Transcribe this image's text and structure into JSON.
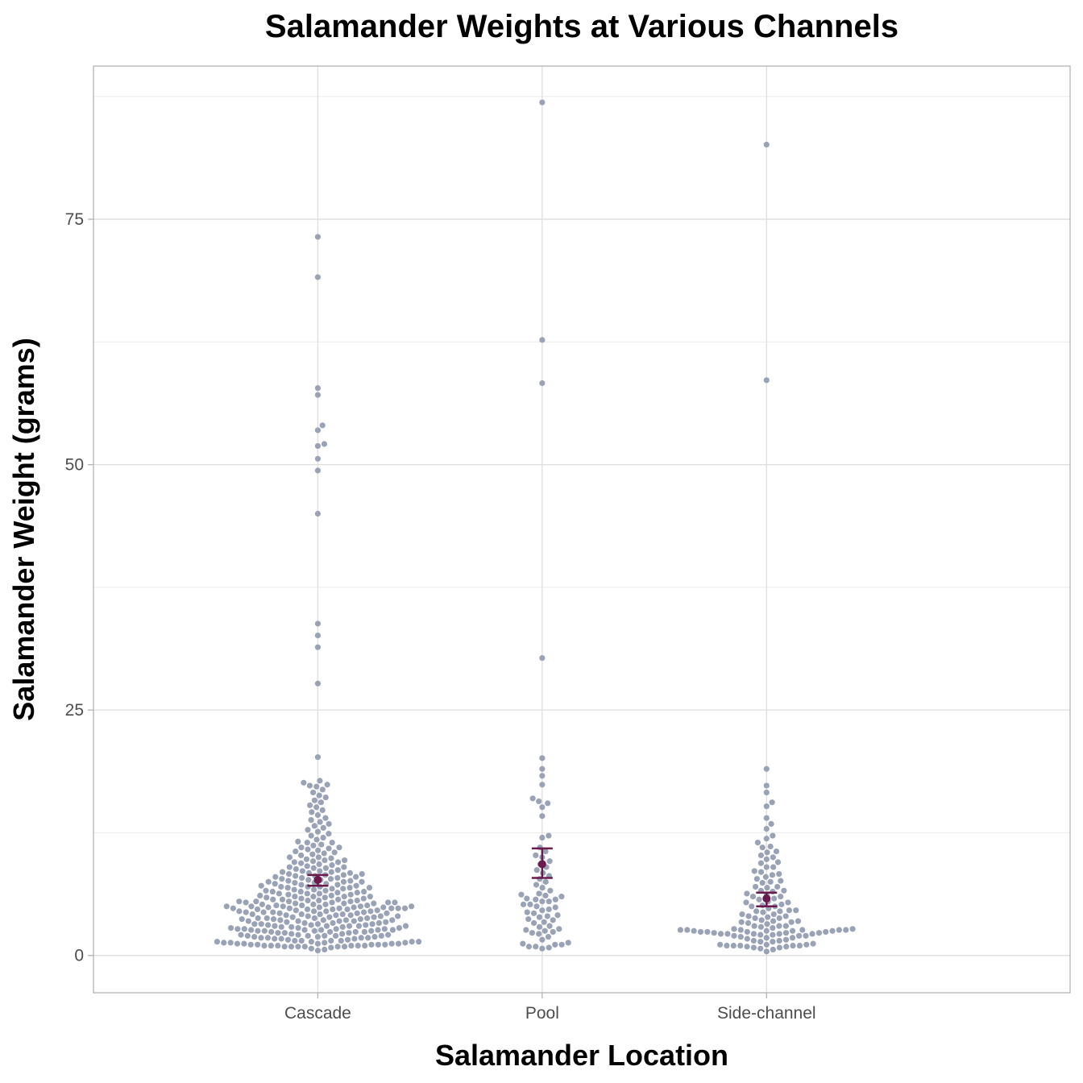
{
  "chart_data": {
    "type": "scatter",
    "subtype": "beeswarm",
    "title": "Salamander Weights at Various Channels",
    "xlabel": "Salamander Location",
    "ylabel": "Salamander Weight (grams)",
    "categories": [
      "Cascade",
      "Pool",
      "Side-channel"
    ],
    "ylim": [
      -3.8,
      90.6
    ],
    "yticks": [
      0,
      25,
      50,
      75
    ],
    "grid": true,
    "legend": "none",
    "point_color": "#9aa3b5",
    "summary_color": "#6b1a4e",
    "series": [
      {
        "name": "Cascade",
        "mean": 7.7,
        "error_low": 7.1,
        "error_high": 8.2,
        "values": [
          73.2,
          69.1,
          57.8,
          57.1,
          54.0,
          53.5,
          52.1,
          51.9,
          50.6,
          49.4,
          45.0,
          33.8,
          32.6,
          31.4,
          27.7,
          20.2,
          17.8,
          17.6,
          17.4,
          17.3,
          17.2,
          16.9,
          16.6,
          16.3,
          16.1,
          15.8,
          15.6,
          15.3,
          15.1,
          14.8,
          14.6,
          14.3,
          14.0,
          13.8,
          13.6,
          13.4,
          13.2,
          13.0,
          12.8,
          12.6,
          12.4,
          12.2,
          12.0,
          11.8,
          11.6,
          11.5,
          11.3,
          11.2,
          11.0,
          10.9,
          10.8,
          10.6,
          10.4,
          10.2,
          10.0,
          9.9,
          9.7,
          9.6,
          9.5,
          9.3,
          9.2,
          9.0,
          8.9,
          8.8,
          8.6,
          8.5,
          8.4,
          8.3,
          8.2,
          8.1,
          8.0,
          7.9,
          7.8,
          7.7,
          7.6,
          7.5,
          7.4,
          7.3,
          7.2,
          7.1,
          7.0,
          6.9,
          6.8,
          6.7,
          6.6,
          6.5,
          6.4,
          6.3,
          6.2,
          6.1,
          6.0,
          5.9,
          5.8,
          5.7,
          5.6,
          5.5,
          5.4,
          5.3,
          5.2,
          5.1,
          5.0,
          4.9,
          4.8,
          4.7,
          4.6,
          4.5,
          4.4,
          4.3,
          4.2,
          4.1,
          4.0,
          3.9,
          3.8,
          3.7,
          3.6,
          3.5,
          3.4,
          3.3,
          3.2,
          3.1,
          3.0,
          2.9,
          2.8,
          2.7,
          2.6,
          2.5,
          2.4,
          2.3,
          2.2,
          2.1,
          2.0,
          1.9,
          1.8,
          1.7,
          1.6,
          1.5,
          1.4,
          1.3,
          1.2,
          1.1,
          1.0,
          0.9,
          0.8,
          0.7,
          0.6,
          0.5,
          11.5,
          11.0,
          10.5,
          10.0,
          9.5,
          9.0,
          8.5,
          8.0,
          7.5,
          7.0,
          6.5,
          6.0,
          5.5,
          5.0,
          4.5,
          4.0,
          3.5,
          3.0,
          2.5,
          2.0,
          1.5,
          1.0,
          10.7,
          9.8,
          9.1,
          8.4,
          7.8,
          7.2,
          6.6,
          6.0,
          5.4,
          4.8,
          4.2,
          3.6,
          3.0,
          2.4,
          1.8,
          1.2,
          0.9,
          10.3,
          9.7,
          8.7,
          8.1,
          7.4,
          6.9,
          6.3,
          5.7,
          5.1,
          4.6,
          4.0,
          3.4,
          2.8,
          2.2,
          1.6,
          1.1,
          9.4,
          8.6,
          7.9,
          7.3,
          6.8,
          6.2,
          5.6,
          5.0,
          4.4,
          3.8,
          3.2,
          2.6,
          2.0,
          1.4,
          0.9,
          8.9,
          8.2,
          7.6,
          7.0,
          6.4,
          5.8,
          5.2,
          4.7,
          4.1,
          3.5,
          2.9,
          2.3,
          1.7,
          1.2,
          8.3,
          7.7,
          7.1,
          6.5,
          5.9,
          5.3,
          4.8,
          4.2,
          3.6,
          3.0,
          2.4,
          1.8,
          1.3,
          0.9,
          7.5,
          6.9,
          6.3,
          5.7,
          5.1,
          4.5,
          3.9,
          3.3,
          2.7,
          2.1,
          1.5,
          1.0,
          6.7,
          6.1,
          5.5,
          4.9,
          4.3,
          3.7,
          3.1,
          2.5,
          1.9,
          1.3,
          6.0,
          5.4,
          4.8,
          4.2,
          3.6,
          3.0,
          2.4,
          1.8,
          1.2,
          0.9,
          5.6,
          5.0,
          4.4,
          3.8,
          3.2,
          2.6,
          2.0,
          1.4,
          1.0,
          5.3,
          4.7,
          4.1,
          3.5,
          2.9,
          2.3,
          1.7,
          1.1,
          5.0,
          4.5,
          3.9,
          3.3,
          2.7,
          2.1,
          1.5,
          1.0,
          4.9,
          4.4,
          3.8,
          3.2,
          2.6,
          2.0,
          1.4,
          1.0,
          4.8,
          4.3,
          3.7,
          3.1,
          2.5,
          1.9,
          1.3,
          0.9,
          5.2,
          4.7,
          2.6,
          1.1,
          5.4,
          4.8,
          2.7,
          1.2,
          5.5,
          4.9,
          2.8,
          1.1
        ]
      },
      {
        "name": "Pool",
        "mean": 9.3,
        "error_low": 7.9,
        "error_high": 10.9,
        "values": [
          86.9,
          62.7,
          58.3,
          30.3,
          20.1,
          19.0,
          18.3,
          17.4,
          16.0,
          15.7,
          15.5,
          15.1,
          14.2,
          12.2,
          12.0,
          11.0,
          10.6,
          10.2,
          10.0,
          9.6,
          9.3,
          9.0,
          8.7,
          8.4,
          8.1,
          7.8,
          7.5,
          7.2,
          6.9,
          6.6,
          6.3,
          6.0,
          5.7,
          5.5,
          5.2,
          5.0,
          4.7,
          4.4,
          4.1,
          3.9,
          3.6,
          3.3,
          3.0,
          2.7,
          2.5,
          2.2,
          1.9,
          1.6,
          1.3,
          1.1,
          0.9,
          0.7,
          6.1,
          5.8,
          5.5,
          5.2,
          4.9,
          4.6,
          4.3,
          4.0,
          3.7,
          3.4,
          2.9,
          2.6,
          2.3,
          1.1,
          0.9,
          0.8,
          1.2,
          2.4,
          5.7,
          6.2
        ]
      },
      {
        "name": "Side-channel",
        "mean": 5.8,
        "error_low": 5.0,
        "error_high": 6.4,
        "values": [
          82.6,
          58.6,
          19.0,
          17.3,
          16.6,
          15.6,
          15.2,
          14.0,
          13.4,
          12.9,
          12.2,
          11.9,
          11.5,
          11.1,
          10.6,
          10.2,
          9.8,
          9.4,
          9.0,
          8.6,
          8.2,
          7.8,
          7.4,
          7.0,
          6.6,
          6.2,
          5.8,
          5.4,
          5.0,
          4.6,
          4.2,
          3.8,
          3.4,
          3.0,
          2.6,
          2.2,
          1.8,
          1.4,
          1.1,
          0.8,
          0.6,
          0.4,
          11.0,
          10.5,
          10.0,
          9.5,
          9.0,
          8.5,
          8.0,
          7.5,
          7.0,
          6.5,
          6.0,
          5.5,
          5.0,
          4.5,
          4.0,
          3.5,
          3.0,
          2.5,
          2.0,
          1.5,
          1.0,
          0.7,
          8.3,
          7.6,
          6.9,
          6.3,
          5.7,
          5.1,
          4.5,
          3.9,
          3.3,
          2.7,
          2.1,
          1.5,
          1.0,
          6.6,
          6.0,
          5.4,
          4.8,
          4.2,
          3.6,
          3.0,
          2.4,
          1.8,
          1.2,
          0.8,
          5.2,
          4.6,
          4.0,
          3.4,
          2.8,
          2.2,
          1.6,
          1.0,
          4.4,
          3.8,
          3.2,
          2.6,
          2.0,
          1.4,
          0.9,
          3.5,
          2.9,
          2.3,
          1.7,
          1.1,
          2.6,
          2.4,
          2.2,
          2.0,
          1.0,
          0.9,
          2.5,
          2.6,
          2.7,
          2.5,
          2.4,
          2.3,
          2.2,
          2.1,
          1.9,
          1.1,
          1.0,
          2.2,
          2.3,
          2.4,
          2.5,
          2.6,
          2.6
        ]
      }
    ]
  }
}
